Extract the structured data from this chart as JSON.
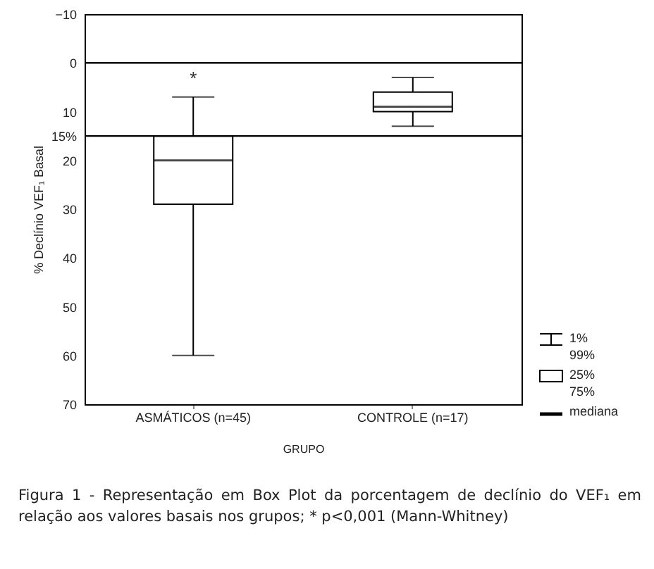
{
  "chart_data": {
    "type": "box",
    "xlabel": "GRUPO",
    "ylabel": "% Declínio VEF₁ Basal",
    "categories": [
      "ASMÁTICOS (n=45)",
      "CONTROLE (n=17)"
    ],
    "series": [
      {
        "color": "#000000",
        "boxes": [
          {
            "low": 7,
            "q1": 15,
            "median": 20,
            "q3": 29,
            "high": 60
          },
          {
            "low": 3,
            "q1": 6,
            "median": 9,
            "q3": 10,
            "high": 13
          }
        ]
      }
    ],
    "ylim": [
      70,
      -10
    ],
    "yticks": [
      -10,
      0,
      10,
      {
        "value": 15,
        "label": "15%"
      },
      20,
      30,
      40,
      50,
      60,
      70
    ],
    "ref_lines": [
      {
        "axis": "y",
        "value": 0
      },
      {
        "axis": "y",
        "value": 15
      }
    ],
    "grid": false,
    "annotations": [
      "*",
      "1%",
      "99%",
      "25%",
      "75%",
      "mediana",
      "Figura 1 - Representação em Box Plot da porcentagem de declínio do VEF₁ em relação aos valores basais nos grupos; * p<0,001 (Mann-Whitney)"
    ]
  }
}
